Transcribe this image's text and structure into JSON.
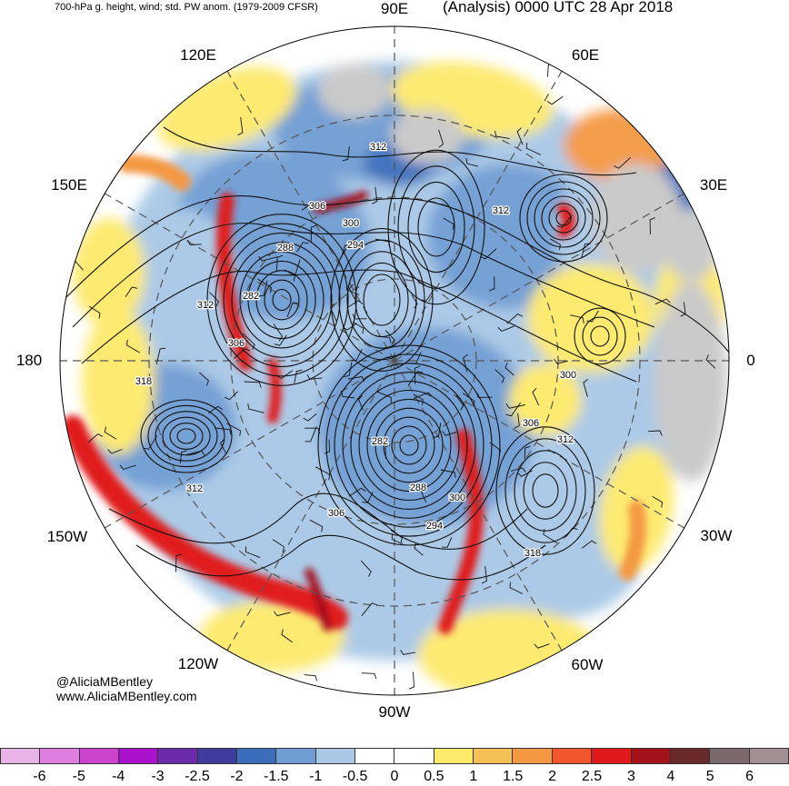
{
  "header": {
    "product": "700-hPa g. height, wind; std. PW anom. (1979-2009 CFSR)",
    "valid": "(Analysis) 0000 UTC 28 Apr 2018"
  },
  "longitude_labels": {
    "e90": "90E",
    "e60": "60E",
    "e30": "30E",
    "zero": "0",
    "w30": "30W",
    "w60": "60W",
    "w90": "90W",
    "w120": "120W",
    "w150": "150W",
    "dateline": "180",
    "e150": "150E",
    "e120": "120E"
  },
  "contour_labels": {
    "c1": "312",
    "c2": "306",
    "c3": "300",
    "c4": "288",
    "c5": "294",
    "c6": "282",
    "c7": "312",
    "c8": "312",
    "c9": "306",
    "c10": "318",
    "c11": "312",
    "c12": "300",
    "c13": "306",
    "c14": "312",
    "c15": "282",
    "c16": "288",
    "c17": "300",
    "c18": "294",
    "c19": "306",
    "c20": "318"
  },
  "credits": {
    "handle": "@AliciaMBentley",
    "website": "www.AliciaMBentley.com"
  },
  "colorbar": {
    "labels": [
      "-6",
      "-5",
      "-4",
      "-3",
      "-2.5",
      "-2",
      "-1.5",
      "-1",
      "-0.5",
      "0",
      "0.5",
      "1",
      "1.5",
      "2",
      "2.5",
      "3",
      "4",
      "5",
      "6"
    ],
    "colors": [
      "#e8b4e8",
      "#e07ee0",
      "#cc44cc",
      "#aa11cc",
      "#6a2aaa",
      "#3d3d9e",
      "#3b6dba",
      "#6e9cd3",
      "#a8c8e6",
      "#ffffff",
      "#ffffff",
      "#fde96b",
      "#f5c056",
      "#f49842",
      "#f1562e",
      "#e01a1a",
      "#a3111a",
      "#6b2a2a",
      "#7a6a6a",
      "#a09090"
    ]
  },
  "map_colors": {
    "land_gray": "#c8c8c8",
    "ocean_white": "#ffffff",
    "neg_light": "#a8c8e6",
    "neg_mid": "#6e9cd3",
    "neg_dark": "#3b6dba",
    "pos_yellow": "#fde96b",
    "pos_orange": "#f49842",
    "pos_red": "#e01a1a",
    "pos_darkred": "#a3111a"
  }
}
